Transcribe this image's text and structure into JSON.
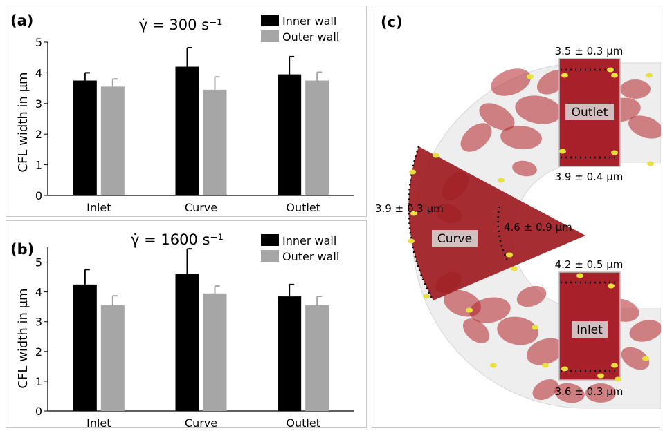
{
  "colors": {
    "inner_wall": "#000000",
    "outer_wall": "#a6a6a6",
    "rbc": "#b3242a",
    "platelet": "#e8e23a",
    "channel": "#e9e9e9",
    "roi_box": "#c8c8c8"
  },
  "chart_data": [
    {
      "type": "bar",
      "panel_label": "(a)",
      "title": "γ̇ = 300 s⁻¹",
      "xlabel": "",
      "ylabel": "CFL width in µm",
      "ylim": [
        0,
        5
      ],
      "yticks": [
        "0",
        "1",
        "2",
        "3",
        "4",
        "5"
      ],
      "grid": false,
      "legend_position": "top-right",
      "categories": [
        "Inlet",
        "Curve",
        "Outlet"
      ],
      "series": [
        {
          "name": "Inner wall",
          "color": "#000000",
          "values": [
            3.75,
            4.2,
            3.95
          ],
          "errors": [
            0.25,
            0.62,
            0.58
          ]
        },
        {
          "name": "Outer wall",
          "color": "#a6a6a6",
          "values": [
            3.55,
            3.45,
            3.75
          ],
          "errors": [
            0.25,
            0.42,
            0.27
          ]
        }
      ]
    },
    {
      "type": "bar",
      "panel_label": "(b)",
      "title": "γ̇ = 1600 s⁻¹",
      "xlabel": "",
      "ylabel": "CFL width in µm",
      "ylim": [
        0,
        5.5
      ],
      "yticks": [
        "0",
        "1",
        "2",
        "3",
        "4",
        "5"
      ],
      "grid": false,
      "legend_position": "top-right",
      "categories": [
        "Inlet",
        "Curve",
        "Outlet"
      ],
      "series": [
        {
          "name": "Inner wall",
          "color": "#000000",
          "values": [
            4.25,
            4.6,
            3.85
          ],
          "errors": [
            0.5,
            0.85,
            0.4
          ]
        },
        {
          "name": "Outer wall",
          "color": "#a6a6a6",
          "values": [
            3.55,
            3.95,
            3.55
          ],
          "errors": [
            0.32,
            0.25,
            0.3
          ]
        }
      ]
    }
  ],
  "panel_c": {
    "panel_label": "(c)",
    "regions": {
      "outlet": "Outlet",
      "curve": "Curve",
      "inlet": "Inlet"
    },
    "annotations": {
      "outlet_top": "3.5 ± 0.3 µm",
      "outlet_bottom": "3.9 ± 0.4 µm",
      "curve_outer": "3.9 ± 0.3 µm",
      "curve_inner": "4.6 ± 0.9 µm",
      "inlet_top": "4.2 ± 0.5 µm",
      "inlet_bottom": "3.6 ± 0.3 µm"
    }
  }
}
